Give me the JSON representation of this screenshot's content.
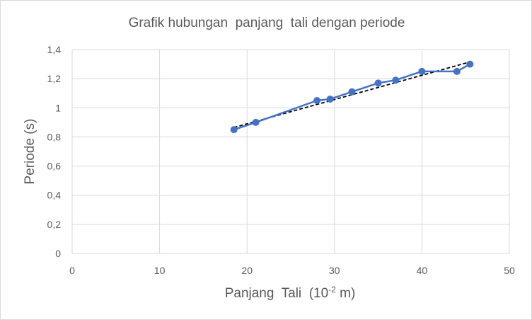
{
  "chart_data": {
    "type": "line",
    "title": "Grafik hubungan  panjang  tali dengan periode",
    "xlabel": "Panjang  Tali  (10",
    "xlabel_sup": "-2",
    "xlabel_unit": " m)",
    "ylabel": "Periode (s)",
    "xlim": [
      0,
      50
    ],
    "ylim": [
      0,
      1.4
    ],
    "x_ticks": [
      "0",
      "10",
      "20",
      "30",
      "40",
      "50"
    ],
    "y_ticks": [
      "0",
      "0,2",
      "0,4",
      "0,6",
      "0,8",
      "1",
      "1,2",
      "1,4"
    ],
    "grid": true,
    "legend": "none",
    "series": [
      {
        "color": "#4472c4",
        "x": [
          18.5,
          21,
          28,
          29.5,
          32,
          35,
          37,
          40,
          44,
          45.5
        ],
        "y": [
          0.85,
          0.9,
          1.05,
          1.06,
          1.11,
          1.17,
          1.19,
          1.25,
          1.25,
          1.3
        ]
      }
    ],
    "trendline": {
      "color": "#000000",
      "style": "dashed",
      "x": [
        18.5,
        45.5
      ],
      "y": [
        0.865,
        1.315
      ]
    }
  }
}
